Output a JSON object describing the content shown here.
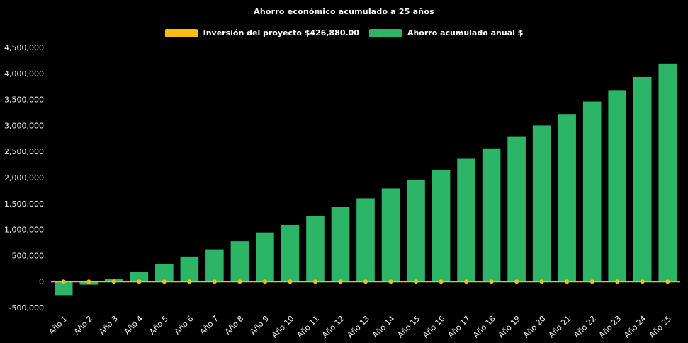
{
  "title": "Ahorro económico acumulado a 25 años",
  "legend": {
    "investment_label": "Inversión del proyecto $426,880.00",
    "savings_label": "Ahorro acumulado anual $"
  },
  "colors": {
    "background": "#000000",
    "bar_green": "#2CB566",
    "line_yellow": "#F2C110",
    "text": "#F2F2F2"
  },
  "chart_data": {
    "type": "bar",
    "title": "Ahorro económico acumulado a 25 años",
    "categories": [
      "Año 1",
      "Año 2",
      "Año 3",
      "Año 4",
      "Año 5",
      "Año 6",
      "Año 7",
      "Año 8",
      "Año 9",
      "Año 10",
      "Año 11",
      "Año 12",
      "Año 13",
      "Año 14",
      "Año 15",
      "Año 16",
      "Año 17",
      "Año 18",
      "Año 19",
      "Año 20",
      "Año 21",
      "Año 22",
      "Año 23",
      "Año 24",
      "Año 25"
    ],
    "series": [
      {
        "name": "Ahorro acumulado anual $",
        "type": "bar",
        "color": "#2CB566",
        "values": [
          -260000,
          -60000,
          50000,
          180000,
          330000,
          480000,
          620000,
          775000,
          945000,
          1090000,
          1265000,
          1440000,
          1600000,
          1790000,
          1960000,
          2150000,
          2360000,
          2560000,
          2780000,
          3000000,
          3220000,
          3460000,
          3680000,
          3930000,
          4190000
        ]
      },
      {
        "name": "Inversión del proyecto $426,880.00",
        "type": "line",
        "color": "#F2C110",
        "marker": "circle",
        "investment_amount_label": 426880.0,
        "values": [
          0,
          0,
          0,
          0,
          0,
          0,
          0,
          0,
          0,
          0,
          0,
          0,
          0,
          0,
          0,
          0,
          0,
          0,
          0,
          0,
          0,
          0,
          0,
          0,
          0
        ]
      }
    ],
    "xlabel": "",
    "ylabel": "",
    "ylim": [
      -500000,
      4500000
    ],
    "ytick_step": 500000,
    "grid": false,
    "legend_position": "top",
    "background": "#000000"
  }
}
